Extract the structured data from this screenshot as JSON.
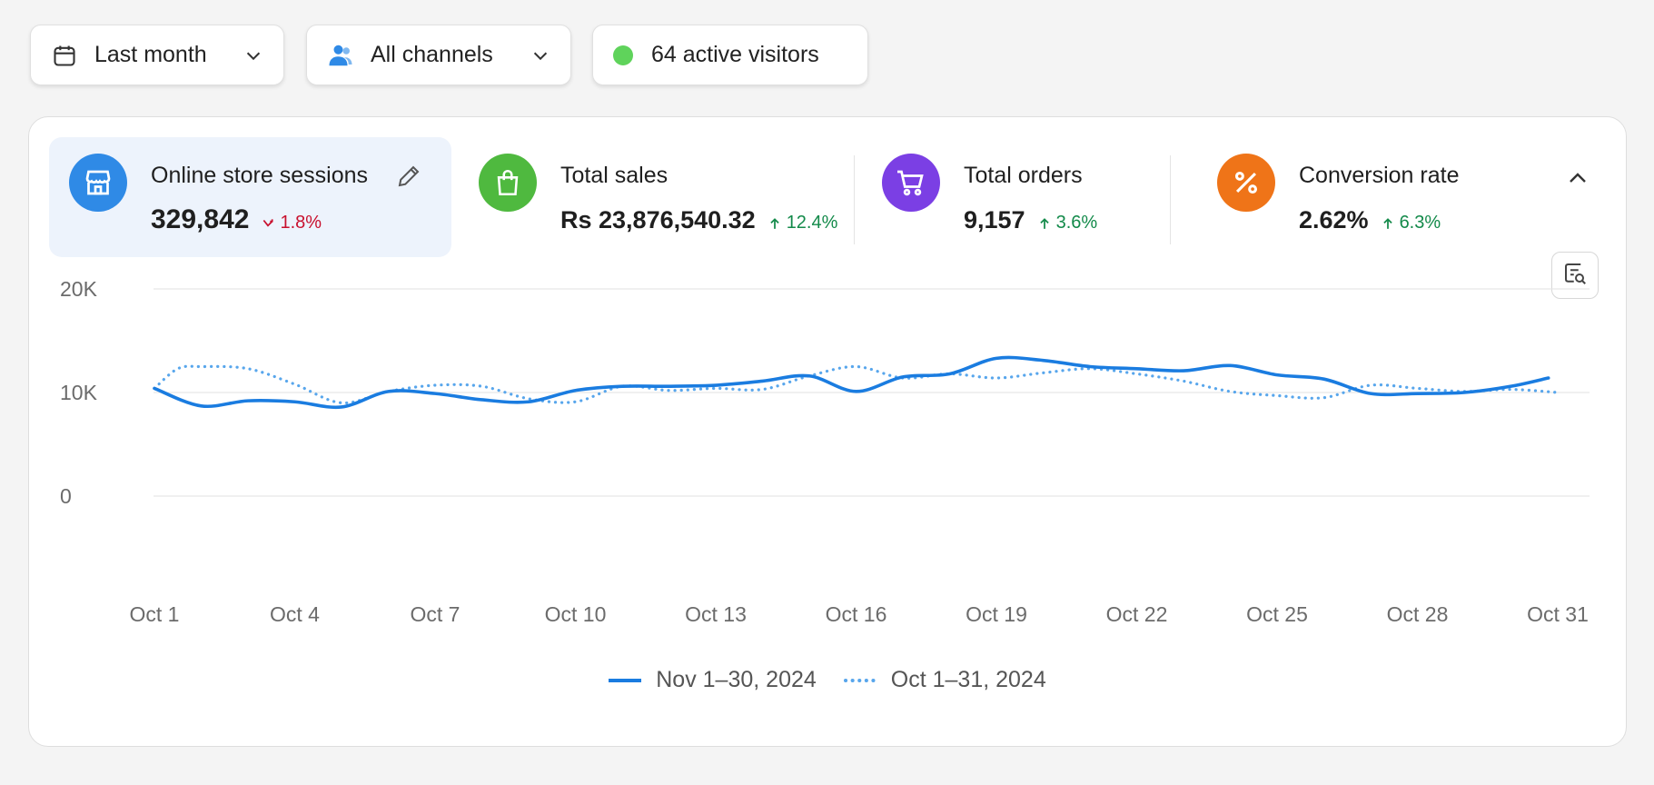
{
  "filters": {
    "date": {
      "label": "Last month"
    },
    "channel": {
      "label": "All channels"
    },
    "visitors": {
      "label": "64 active visitors",
      "status_color": "#5fd35b"
    }
  },
  "metrics": [
    {
      "title": "Online store sessions",
      "value": "329,842",
      "change": "1.8%",
      "direction": "down",
      "icon": "store-icon",
      "color": "#2f8ae6"
    },
    {
      "title": "Total sales",
      "value": "Rs 23,876,540.32",
      "change": "12.4%",
      "direction": "up",
      "icon": "shopping-bag-icon",
      "color": "#4fb93f"
    },
    {
      "title": "Total orders",
      "value": "9,157",
      "change": "3.6%",
      "direction": "up",
      "icon": "cart-icon",
      "color": "#7b3fe4"
    },
    {
      "title": "Conversion rate",
      "value": "2.62%",
      "change": "6.3%",
      "direction": "up",
      "icon": "percent-icon",
      "color": "#ef7418"
    }
  ],
  "chart_data": {
    "type": "line",
    "ylim": [
      0,
      20000
    ],
    "yticks": [
      {
        "value": 0,
        "label": "0"
      },
      {
        "value": 10000,
        "label": "10K"
      },
      {
        "value": 20000,
        "label": "20K"
      }
    ],
    "x_ticks": [
      {
        "day": 1,
        "label": "Oct 1"
      },
      {
        "day": 4,
        "label": "Oct 4"
      },
      {
        "day": 7,
        "label": "Oct 7"
      },
      {
        "day": 10,
        "label": "Oct 10"
      },
      {
        "day": 13,
        "label": "Oct 13"
      },
      {
        "day": 16,
        "label": "Oct 16"
      },
      {
        "day": 19,
        "label": "Oct 19"
      },
      {
        "day": 22,
        "label": "Oct 22"
      },
      {
        "day": 25,
        "label": "Oct 25"
      },
      {
        "day": 28,
        "label": "Oct 28"
      },
      {
        "day": 31,
        "label": "Oct 31"
      }
    ],
    "grid": true,
    "legend_position": "bottom",
    "series": [
      {
        "name": "Nov 1–30, 2024",
        "style": "solid",
        "color": "#1a7ce0",
        "points": [
          [
            1,
            10400
          ],
          [
            2,
            8700
          ],
          [
            3,
            9200
          ],
          [
            4,
            9100
          ],
          [
            5,
            8600
          ],
          [
            6,
            10100
          ],
          [
            7,
            9900
          ],
          [
            8,
            9300
          ],
          [
            9,
            9100
          ],
          [
            10,
            10200
          ],
          [
            11,
            10600
          ],
          [
            12,
            10600
          ],
          [
            13,
            10700
          ],
          [
            14,
            11100
          ],
          [
            15,
            11600
          ],
          [
            16,
            10100
          ],
          [
            17,
            11500
          ],
          [
            18,
            11800
          ],
          [
            19,
            13300
          ],
          [
            20,
            13100
          ],
          [
            21,
            12500
          ],
          [
            22,
            12300
          ],
          [
            23,
            12100
          ],
          [
            24,
            12600
          ],
          [
            25,
            11700
          ],
          [
            26,
            11300
          ],
          [
            27,
            9900
          ],
          [
            28,
            9900
          ],
          [
            29,
            10000
          ],
          [
            30,
            10600
          ],
          [
            30.8,
            11400
          ]
        ]
      },
      {
        "name": "Oct 1–31, 2024",
        "style": "dotted",
        "color": "#58a6ec",
        "points": [
          [
            1,
            10400
          ],
          [
            1.5,
            12300
          ],
          [
            2,
            12500
          ],
          [
            3,
            12300
          ],
          [
            4,
            10800
          ],
          [
            5,
            9000
          ],
          [
            6,
            10100
          ],
          [
            7,
            10700
          ],
          [
            8,
            10600
          ],
          [
            9,
            9400
          ],
          [
            10,
            9100
          ],
          [
            11,
            10600
          ],
          [
            12,
            10200
          ],
          [
            13,
            10400
          ],
          [
            14,
            10300
          ],
          [
            15,
            11600
          ],
          [
            16,
            12500
          ],
          [
            17,
            11400
          ],
          [
            18,
            11800
          ],
          [
            19,
            11400
          ],
          [
            20,
            11900
          ],
          [
            21,
            12300
          ],
          [
            22,
            11800
          ],
          [
            23,
            11100
          ],
          [
            24,
            10100
          ],
          [
            25,
            9700
          ],
          [
            26,
            9500
          ],
          [
            27,
            10700
          ],
          [
            28,
            10400
          ],
          [
            29,
            10100
          ],
          [
            30,
            10300
          ],
          [
            31,
            10000
          ]
        ]
      }
    ]
  }
}
